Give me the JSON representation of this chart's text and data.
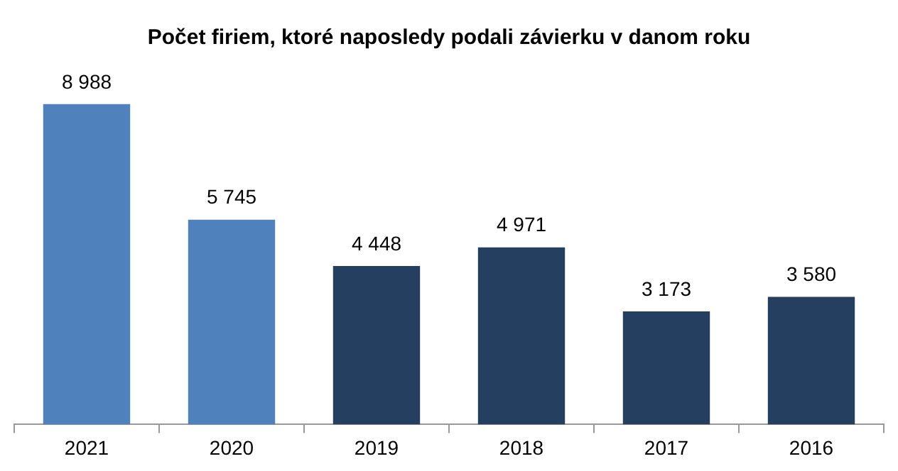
{
  "chart_data": {
    "type": "bar",
    "title": "Počet firiem, ktoré naposledy podali závierku v danom roku",
    "categories": [
      "2021",
      "2020",
      "2019",
      "2018",
      "2017",
      "2016"
    ],
    "values": [
      8988,
      5745,
      4448,
      4971,
      3173,
      3580
    ],
    "colors": [
      "#4f81bd",
      "#4f81bd",
      "#243f60",
      "#243f60",
      "#243f60",
      "#243f60"
    ],
    "value_labels": [
      "8 988",
      "5 745",
      "4 448",
      "4 971",
      "3 173",
      "3 580"
    ],
    "tick_labels": "x",
    "grid": false,
    "legend": false
  }
}
